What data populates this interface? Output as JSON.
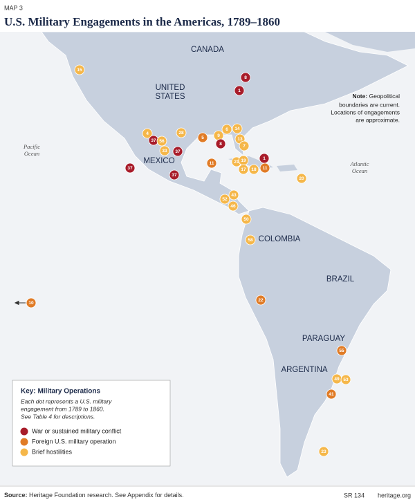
{
  "header": {
    "label": "MAP 3",
    "title": "U.S. Military Engagements in the Americas, 1789–1860"
  },
  "map": {
    "countries": [
      [
        "CANADA"
      ],
      [
        "UNITED",
        "STATES"
      ],
      [
        "MEXICO"
      ],
      [
        "COLOMBIA"
      ],
      [
        "BRAZIL"
      ],
      [
        "PARAGUAY"
      ],
      [
        "ARGENTINA"
      ]
    ],
    "oceans": [
      [
        "Pacific",
        "Ocean"
      ],
      [
        "Atlantic",
        "Ocean"
      ]
    ],
    "note": {
      "lead": "Note:",
      "lines": [
        "Geopolitical",
        "boundaries are current.",
        "Locations of engagements",
        "are approximate."
      ]
    },
    "dots": [
      {
        "label": 15,
        "category": 2
      },
      {
        "label": 8,
        "category": 0
      },
      {
        "label": 1,
        "category": 0
      },
      {
        "label": 4,
        "category": 2
      },
      {
        "label": 37,
        "category": 0
      },
      {
        "label": 56,
        "category": 2
      },
      {
        "label": 28,
        "category": 2
      },
      {
        "label": 33,
        "category": 2
      },
      {
        "label": 37,
        "category": 0
      },
      {
        "label": 5,
        "category": 1
      },
      {
        "label": 6,
        "category": 2
      },
      {
        "label": 14,
        "category": 2
      },
      {
        "label": 9,
        "category": 2
      },
      {
        "label": 8,
        "category": 0
      },
      {
        "label": 13,
        "category": 2
      },
      {
        "label": 7,
        "category": 2
      },
      {
        "label": 37,
        "category": 0
      },
      {
        "label": 37,
        "category": 0
      },
      {
        "label": 11,
        "category": 1
      },
      {
        "label": 21,
        "category": 2
      },
      {
        "label": 19,
        "category": 2
      },
      {
        "label": 17,
        "category": 2
      },
      {
        "label": 18,
        "category": 2
      },
      {
        "label": 1,
        "category": 0
      },
      {
        "label": 11,
        "category": 1
      },
      {
        "label": 20,
        "category": 2
      },
      {
        "label": 43,
        "category": 2
      },
      {
        "label": 52,
        "category": 2
      },
      {
        "label": 46,
        "category": 2
      },
      {
        "label": 50,
        "category": 2
      },
      {
        "label": 58,
        "category": 2
      },
      {
        "label": 10,
        "category": 1
      },
      {
        "label": 22,
        "category": 1
      },
      {
        "label": 55,
        "category": 1
      },
      {
        "label": 49,
        "category": 2
      },
      {
        "label": 53,
        "category": 2
      },
      {
        "label": 41,
        "category": 1
      },
      {
        "label": 23,
        "category": 2
      }
    ]
  },
  "key": {
    "title": "Key: Military Operations",
    "description": [
      "Each dot represents a U.S. military",
      "engagement from 1789 to 1860.",
      "See Table 4 for descriptions."
    ],
    "categories": [
      {
        "label": "War or sustained military conflict",
        "color": "#a81c2a"
      },
      {
        "label": "Foreign U.S. military operation",
        "color": "#e07b26"
      },
      {
        "label": "Brief hostilities",
        "color": "#f5b74a"
      }
    ]
  },
  "footer": {
    "source_label": "Source:",
    "source": "Heritage Foundation research. See Appendix for details.",
    "report": "SR 134",
    "site": "heritage.org"
  }
}
